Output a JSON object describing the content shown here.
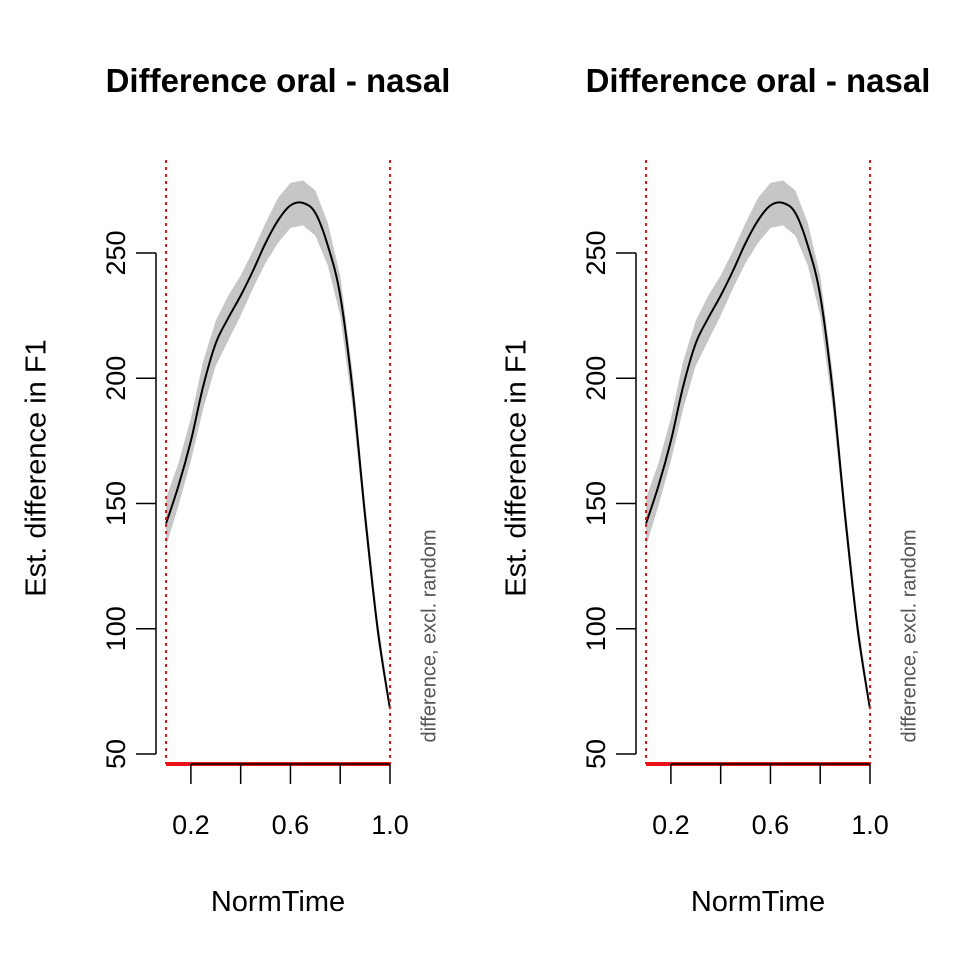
{
  "chart_data": [
    {
      "type": "line",
      "title": "Difference oral - nasal",
      "xlabel": "NormTime",
      "ylabel": "Est. difference in F1",
      "xlim": [
        0.1,
        1.0
      ],
      "ylim": [
        50,
        280
      ],
      "x_ticks": [
        0.2,
        0.4,
        0.6,
        0.8,
        1.0
      ],
      "x_tick_labels": [
        "0.2",
        "0.6",
        "1.0"
      ],
      "x_labeled_ticks": [
        0.2,
        0.6,
        1.0
      ],
      "y_ticks": [
        50,
        100,
        150,
        200,
        250
      ],
      "y_tick_labels": [
        "50",
        "100",
        "150",
        "200",
        "250"
      ],
      "side_note": "difference, excl. random",
      "vertical_reference_lines": [
        0.1,
        1.0
      ],
      "significant_interval": [
        0.1,
        1.0
      ],
      "grid": false,
      "series": [
        {
          "x": [
            0.1,
            0.15,
            0.2,
            0.25,
            0.3,
            0.35,
            0.4,
            0.45,
            0.5,
            0.55,
            0.6,
            0.65,
            0.7,
            0.75,
            0.8,
            0.85,
            0.9,
            0.95,
            1.0
          ],
          "y": [
            142,
            157,
            175,
            197,
            214,
            224,
            233,
            243,
            254,
            263,
            269,
            270,
            266,
            253,
            233,
            195,
            145,
            100,
            68
          ],
          "lower": [
            133,
            149,
            167,
            188,
            205,
            215,
            225,
            236,
            246,
            254,
            260,
            261,
            257,
            245,
            225,
            188,
            140,
            96,
            66
          ],
          "upper": [
            152,
            166,
            184,
            207,
            223,
            233,
            241,
            251,
            262,
            272,
            278,
            279,
            275,
            262,
            241,
            202,
            150,
            104,
            70
          ]
        }
      ]
    },
    {
      "type": "line",
      "title": "Difference oral - nasal",
      "xlabel": "NormTime",
      "ylabel": "Est. difference in F1",
      "xlim": [
        0.1,
        1.0
      ],
      "ylim": [
        50,
        280
      ],
      "x_ticks": [
        0.2,
        0.4,
        0.6,
        0.8,
        1.0
      ],
      "x_tick_labels": [
        "0.2",
        "0.6",
        "1.0"
      ],
      "x_labeled_ticks": [
        0.2,
        0.6,
        1.0
      ],
      "y_ticks": [
        50,
        100,
        150,
        200,
        250
      ],
      "y_tick_labels": [
        "50",
        "100",
        "150",
        "200",
        "250"
      ],
      "side_note": "difference, excl. random",
      "vertical_reference_lines": [
        0.1,
        1.0
      ],
      "significant_interval": [
        0.1,
        1.0
      ],
      "grid": false,
      "series": [
        {
          "x": [
            0.1,
            0.15,
            0.2,
            0.25,
            0.3,
            0.35,
            0.4,
            0.45,
            0.5,
            0.55,
            0.6,
            0.65,
            0.7,
            0.75,
            0.8,
            0.85,
            0.9,
            0.95,
            1.0
          ],
          "y": [
            142,
            157,
            175,
            197,
            214,
            224,
            233,
            243,
            254,
            263,
            269,
            270,
            266,
            253,
            233,
            195,
            145,
            100,
            68
          ],
          "lower": [
            133,
            149,
            167,
            188,
            205,
            215,
            225,
            236,
            246,
            254,
            260,
            261,
            257,
            245,
            225,
            188,
            140,
            96,
            66
          ],
          "upper": [
            152,
            166,
            184,
            207,
            223,
            233,
            241,
            251,
            262,
            272,
            278,
            279,
            275,
            262,
            241,
            202,
            150,
            104,
            70
          ]
        }
      ]
    }
  ],
  "colors": {
    "line": "#000000",
    "confidence_band": "#c6c6c6",
    "reference_line": "#e8141a",
    "significance_bar": "#e8141a",
    "side_note": "#555555"
  }
}
